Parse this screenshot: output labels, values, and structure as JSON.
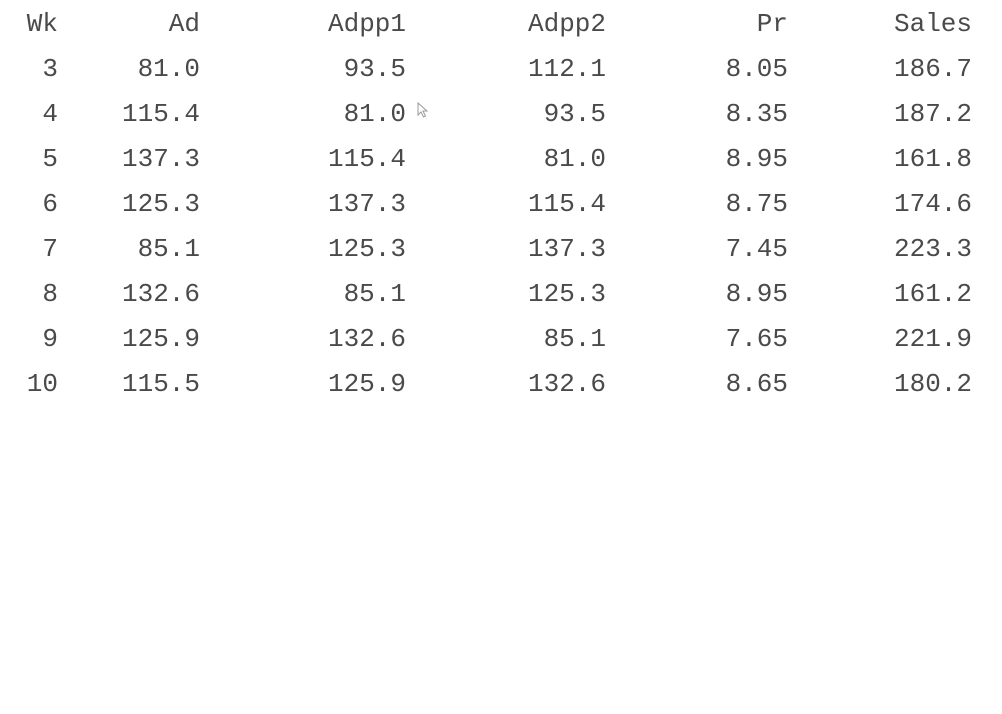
{
  "table": {
    "headers": [
      "Wk",
      "Ad",
      "Adpp1",
      "Adpp2",
      "Pr",
      "Sales"
    ],
    "rows": [
      [
        "3",
        "81.0",
        "93.5",
        "112.1",
        "8.05",
        "186.7"
      ],
      [
        "4",
        "115.4",
        "81.0",
        "93.5",
        "8.35",
        "187.2"
      ],
      [
        "5",
        "137.3",
        "115.4",
        "81.0",
        "8.95",
        "161.8"
      ],
      [
        "6",
        "125.3",
        "137.3",
        "115.4",
        "8.75",
        "174.6"
      ],
      [
        "7",
        "85.1",
        "125.3",
        "137.3",
        "7.45",
        "223.3"
      ],
      [
        "8",
        "132.6",
        "85.1",
        "125.3",
        "8.95",
        "161.2"
      ],
      [
        "9",
        "125.9",
        "132.6",
        "85.1",
        "7.65",
        "221.9"
      ],
      [
        "10",
        "115.5",
        "125.9",
        "132.6",
        "8.65",
        "180.2"
      ]
    ]
  },
  "cursor_icon": "mouse-pointer-icon"
}
